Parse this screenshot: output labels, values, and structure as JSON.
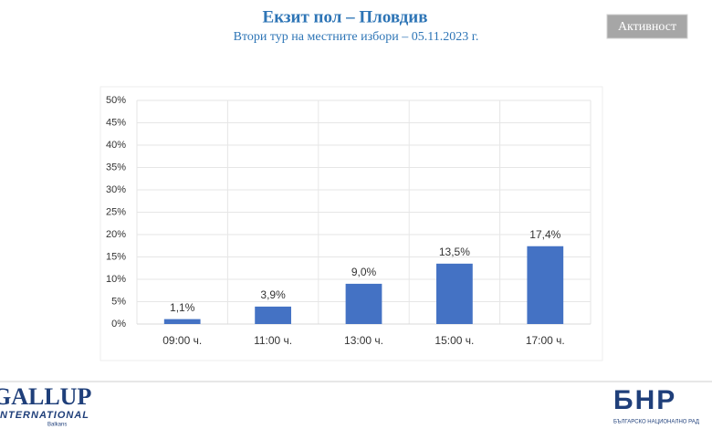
{
  "chart_data": {
    "type": "bar",
    "title": "Екзит пол – Пловдив",
    "subtitle": "Втори тур на местните избори – 05.11.2023 г.",
    "categories": [
      "09:00 ч.",
      "11:00 ч.",
      "13:00 ч.",
      "15:00 ч.",
      "17:00 ч."
    ],
    "values": [
      1.1,
      3.9,
      9.0,
      13.5,
      17.4
    ],
    "value_labels": [
      "1,1%",
      "3,9%",
      "9,0%",
      "13,5%",
      "17,4%"
    ],
    "color": "#4472c4",
    "ylim": [
      0,
      50
    ],
    "yticks": [
      {
        "value": 0,
        "label": "0%"
      },
      {
        "value": 5,
        "label": "5%"
      },
      {
        "value": 10,
        "label": "10%"
      },
      {
        "value": 15,
        "label": "15%"
      },
      {
        "value": 20,
        "label": "20%"
      },
      {
        "value": 25,
        "label": "25%"
      },
      {
        "value": 30,
        "label": "30%"
      },
      {
        "value": 35,
        "label": "35%"
      },
      {
        "value": 40,
        "label": "40%"
      },
      {
        "value": 45,
        "label": "45%"
      },
      {
        "value": 50,
        "label": "50%"
      }
    ],
    "grid": true
  },
  "button": {
    "label": "Активност"
  },
  "logos": {
    "gallup": "GALLUP",
    "gallup_sub": "INTERNATIONAL",
    "gallup_region": "Balkans",
    "bnr": "БНР",
    "bnr_sub": "БЪЛГАРСКО НАЦИОНАЛНО РАД"
  }
}
